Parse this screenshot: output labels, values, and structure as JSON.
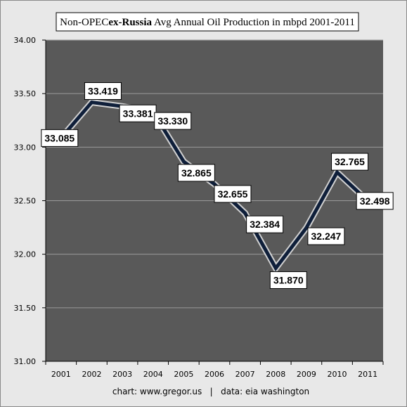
{
  "chart_data": {
    "type": "line",
    "title_parts": [
      "Non-OPEC",
      "ex-Russia",
      "Avg Annual Oil Production in mbpd 2001-2011"
    ],
    "footer": "chart: www.gregor.us   |   data: eia washington",
    "categories": [
      "2001",
      "2002",
      "2003",
      "2004",
      "2005",
      "2006",
      "2007",
      "2008",
      "2009",
      "2010",
      "2011"
    ],
    "values": [
      33.085,
      33.419,
      33.381,
      33.33,
      32.865,
      32.655,
      32.384,
      31.87,
      32.247,
      32.765,
      32.498
    ],
    "data_labels": [
      "33.085",
      "33.419",
      "33.381",
      "33.330",
      "32.865",
      "32.655",
      "32.384",
      "31.870",
      "32.247",
      "32.765",
      "32.498"
    ],
    "ylim": [
      31.0,
      34.0
    ],
    "yticks": [
      "31.00",
      "31.50",
      "32.00",
      "32.50",
      "33.00",
      "33.50",
      "34.00"
    ],
    "grid": true,
    "legend": "none",
    "colors": {
      "outer_bg": "#e8e8e8",
      "plot_bg": "#595959",
      "grid": "#9a9a9a",
      "line": "#0f1f3a",
      "line_glow": "#e6e6e6"
    }
  }
}
